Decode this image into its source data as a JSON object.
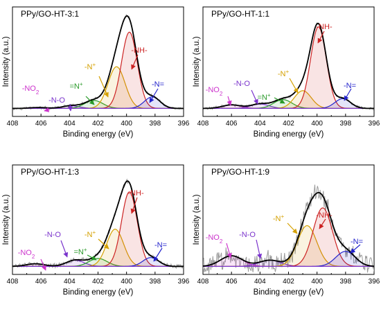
{
  "chart_data": [
    {
      "type": "line",
      "title": "PPy/GO-HT-3:1",
      "xlabel": "Binding energy (eV)",
      "ylabel": "Intensity (a.u.)",
      "xlim": [
        408,
        396
      ],
      "x_ticks": [
        "408",
        "406",
        "404",
        "402",
        "400",
        "398",
        "396"
      ],
      "y_ticks_shown": false,
      "grid": false,
      "components": [
        {
          "name": "-NO2",
          "center": 406.2,
          "fwhm": 1.4,
          "height": 0.01,
          "color": "#cc33cc"
        },
        {
          "name": "-N-O",
          "center": 403.9,
          "fwhm": 1.4,
          "height": 0.03,
          "color": "#7a33cc"
        },
        {
          "name": "=N+",
          "center": 402.3,
          "fwhm": 1.5,
          "height": 0.09,
          "color": "#2a9a2a"
        },
        {
          "name": "-N+",
          "center": 400.7,
          "fwhm": 1.4,
          "height": 0.47,
          "color": "#d4a000"
        },
        {
          "name": "-NH-",
          "center": 399.8,
          "fwhm": 1.3,
          "height": 0.86,
          "color": "#cc2222"
        },
        {
          "name": "-N=",
          "center": 398.2,
          "fwhm": 1.3,
          "height": 0.13,
          "color": "#2222cc"
        }
      ],
      "annotations": [
        {
          "label": "-NO",
          "sub": "2",
          "sup": "",
          "color": "#cc33cc"
        },
        {
          "label": "-N-O",
          "sub": "",
          "sup": "",
          "color": "#7a33cc"
        },
        {
          "label": "=N",
          "sub": "",
          "sup": "+",
          "color": "#2a9a2a"
        },
        {
          "label": "-N",
          "sub": "",
          "sup": "+",
          "color": "#d4a000"
        },
        {
          "label": "-NH-",
          "sub": "",
          "sup": "",
          "color": "#cc2222"
        },
        {
          "label": "-N=",
          "sub": "",
          "sup": "",
          "color": "#2222cc"
        }
      ],
      "noise": 0.012
    },
    {
      "type": "line",
      "title": "PPy/GO-HT-1:1",
      "xlabel": "Binding energy (eV)",
      "ylabel": "Intensity (a.u.)",
      "xlim": [
        408,
        396
      ],
      "x_ticks": [
        "408",
        "406",
        "404",
        "402",
        "400",
        "398",
        "396"
      ],
      "y_ticks_shown": false,
      "grid": false,
      "components": [
        {
          "name": "-NO2",
          "center": 406.0,
          "fwhm": 1.5,
          "height": 0.04,
          "color": "#cc33cc"
        },
        {
          "name": "-N-O",
          "center": 404.0,
          "fwhm": 1.5,
          "height": 0.05,
          "color": "#7a33cc"
        },
        {
          "name": "=N+",
          "center": 402.4,
          "fwhm": 1.5,
          "height": 0.1,
          "color": "#2a9a2a"
        },
        {
          "name": "-N+",
          "center": 401.0,
          "fwhm": 1.4,
          "height": 0.2,
          "color": "#d4a000"
        },
        {
          "name": "-NH-",
          "center": 399.9,
          "fwhm": 1.3,
          "height": 0.92,
          "color": "#cc2222"
        },
        {
          "name": "-N=",
          "center": 398.2,
          "fwhm": 1.3,
          "height": 0.11,
          "color": "#2222cc"
        }
      ],
      "annotations": [
        {
          "label": "-NO",
          "sub": "2",
          "sup": "",
          "color": "#cc33cc"
        },
        {
          "label": "-N-O",
          "sub": "",
          "sup": "",
          "color": "#7a33cc"
        },
        {
          "label": "=N",
          "sub": "",
          "sup": "+",
          "color": "#2a9a2a"
        },
        {
          "label": "-N",
          "sub": "",
          "sup": "+",
          "color": "#d4a000"
        },
        {
          "label": "-NH-",
          "sub": "",
          "sup": "",
          "color": "#cc2222"
        },
        {
          "label": "-N=",
          "sub": "",
          "sup": "",
          "color": "#2222cc"
        }
      ],
      "noise": 0.012
    },
    {
      "type": "line",
      "title": "PPy/GO-HT-1:3",
      "xlabel": "Binding energy (eV)",
      "ylabel": "Intensity (a.u.)",
      "xlim": [
        408,
        396
      ],
      "x_ticks": [
        "408",
        "406",
        "404",
        "402",
        "400",
        "398",
        "396"
      ],
      "y_ticks_shown": false,
      "grid": false,
      "components": [
        {
          "name": "-NO2",
          "center": 406.4,
          "fwhm": 1.5,
          "height": 0.03,
          "color": "#cc33cc"
        },
        {
          "name": "-N-O",
          "center": 403.6,
          "fwhm": 1.5,
          "height": 0.07,
          "color": "#7a33cc"
        },
        {
          "name": "=N+",
          "center": 402.0,
          "fwhm": 1.5,
          "height": 0.09,
          "color": "#2a9a2a"
        },
        {
          "name": "-N+",
          "center": 400.8,
          "fwhm": 1.4,
          "height": 0.42,
          "color": "#d4a000"
        },
        {
          "name": "-NH-",
          "center": 399.8,
          "fwhm": 1.3,
          "height": 0.84,
          "color": "#cc2222"
        },
        {
          "name": "-N=",
          "center": 398.3,
          "fwhm": 1.3,
          "height": 0.1,
          "color": "#2222cc"
        }
      ],
      "annotations": [
        {
          "label": "-NO",
          "sub": "2",
          "sup": "",
          "color": "#cc33cc"
        },
        {
          "label": "-N-O",
          "sub": "",
          "sup": "",
          "color": "#7a33cc"
        },
        {
          "label": "=N",
          "sub": "",
          "sup": "+",
          "color": "#2a9a2a"
        },
        {
          "label": "-N",
          "sub": "",
          "sup": "+",
          "color": "#d4a000"
        },
        {
          "label": "-NH-",
          "sub": "",
          "sup": "",
          "color": "#cc2222"
        },
        {
          "label": "-N=",
          "sub": "",
          "sup": "",
          "color": "#2222cc"
        }
      ],
      "noise": 0.02
    },
    {
      "type": "line",
      "title": "PPy/GO-HT-1:9",
      "xlabel": "Binding energy (eV)",
      "ylabel": "Intensity (a.u.)",
      "xlim": [
        408,
        396
      ],
      "x_ticks": [
        "408",
        "406",
        "404",
        "402",
        "400",
        "398",
        "396"
      ],
      "y_ticks_shown": false,
      "grid": false,
      "components": [
        {
          "name": "-NO2",
          "center": 406.0,
          "fwhm": 1.8,
          "height": 0.12,
          "color": "#cc33cc"
        },
        {
          "name": "-N-O",
          "center": 403.3,
          "fwhm": 1.8,
          "height": 0.07,
          "color": "#7a33cc"
        },
        {
          "name": "-N+",
          "center": 400.7,
          "fwhm": 1.6,
          "height": 0.46,
          "color": "#d4a000"
        },
        {
          "name": "-NH-",
          "center": 399.6,
          "fwhm": 1.6,
          "height": 0.66,
          "color": "#cc2222"
        },
        {
          "name": "-N=",
          "center": 398.0,
          "fwhm": 1.6,
          "height": 0.17,
          "color": "#2222cc"
        }
      ],
      "annotations": [
        {
          "label": "-NO",
          "sub": "2",
          "sup": "",
          "color": "#cc33cc"
        },
        {
          "label": "-N-O",
          "sub": "",
          "sup": "",
          "color": "#7a33cc"
        },
        {
          "label": "-N",
          "sub": "",
          "sup": "+",
          "color": "#d4a000"
        },
        {
          "label": "-NH-",
          "sub": "",
          "sup": "",
          "color": "#cc2222"
        },
        {
          "label": "-N=",
          "sub": "",
          "sup": "",
          "color": "#2222cc"
        }
      ],
      "noise": 0.09
    }
  ]
}
